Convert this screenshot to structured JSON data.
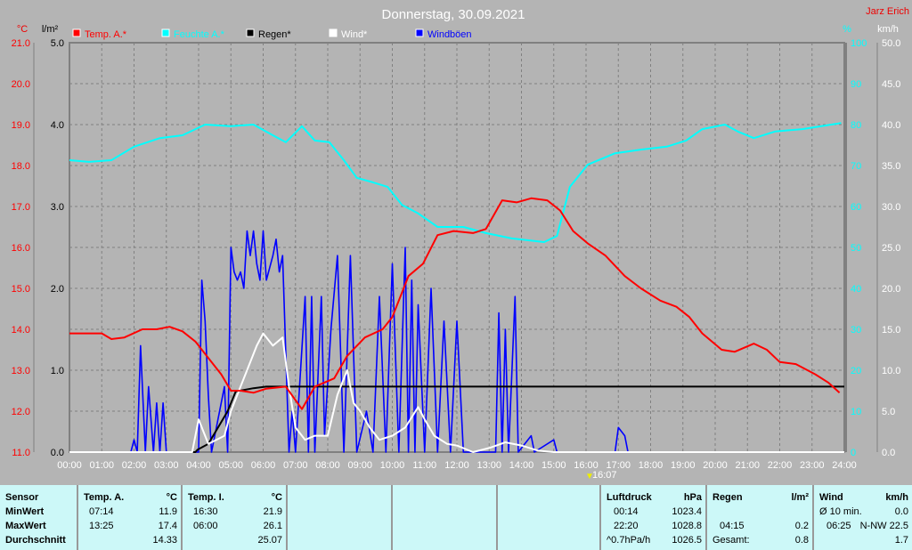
{
  "header": {
    "title": "Donnerstag, 30.09.2021",
    "author": "Jarz Erich"
  },
  "legend": [
    {
      "label": "Temp. A.*",
      "color": "#ff0000"
    },
    {
      "label": "Feuchte A.*",
      "color": "#00ffff"
    },
    {
      "label": "Regen*",
      "color": "#000000"
    },
    {
      "label": "Wind*",
      "color": "#ffffff"
    },
    {
      "label": "Windböen",
      "color": "#0000ff"
    }
  ],
  "marker": {
    "label": "16:07"
  },
  "chart_data": {
    "type": "line",
    "x_axis": {
      "range": [
        0,
        24
      ],
      "ticks": [
        "00:00",
        "01:00",
        "02:00",
        "03:00",
        "04:00",
        "05:00",
        "06:00",
        "07:00",
        "08:00",
        "09:00",
        "10:00",
        "11:00",
        "12:00",
        "13:00",
        "14:00",
        "15:00",
        "16:00",
        "17:00",
        "18:00",
        "19:00",
        "20:00",
        "21:00",
        "22:00",
        "23:00",
        "24:00"
      ]
    },
    "axes": {
      "temp": {
        "unit": "°C",
        "range": [
          11,
          21
        ],
        "ticks": [
          "21.0",
          "20.0",
          "19.0",
          "18.0",
          "17.0",
          "16.0",
          "15.0",
          "14.0",
          "13.0",
          "12.0",
          "11.0"
        ],
        "color": "#ff0000"
      },
      "rain": {
        "unit": "l/m²",
        "range": [
          0,
          5
        ],
        "ticks": [
          "5.0",
          "4.0",
          "3.0",
          "2.0",
          "1.0",
          "0.0"
        ],
        "color": "#000000"
      },
      "humidity": {
        "unit": "%",
        "range": [
          0,
          100
        ],
        "ticks": [
          "100",
          "90",
          "80",
          "70",
          "60",
          "50",
          "40",
          "30",
          "20",
          "10",
          "0"
        ],
        "color": "#00ffff"
      },
      "wind": {
        "unit": "km/h",
        "range": [
          0,
          50
        ],
        "ticks": [
          "50.0",
          "45.0",
          "40.0",
          "35.0",
          "30.0",
          "25.0",
          "20.0",
          "15.0",
          "10.0",
          "5.0",
          "0.0"
        ],
        "color": "#ffffff"
      }
    },
    "grid": true,
    "series": [
      {
        "name": "Temp. A.*",
        "axis": "temp",
        "color": "#ff0000",
        "points": [
          [
            0,
            13.9
          ],
          [
            1,
            13.9
          ],
          [
            1.3,
            13.76
          ],
          [
            1.7,
            13.8
          ],
          [
            2.26,
            14.0
          ],
          [
            2.7,
            14.0
          ],
          [
            3.1,
            14.06
          ],
          [
            3.5,
            13.95
          ],
          [
            3.9,
            13.7
          ],
          [
            4.3,
            13.3
          ],
          [
            4.7,
            12.9
          ],
          [
            5.0,
            12.5
          ],
          [
            5.3,
            12.5
          ],
          [
            5.7,
            12.45
          ],
          [
            6.1,
            12.55
          ],
          [
            6.7,
            12.6
          ],
          [
            7.2,
            12.05
          ],
          [
            7.6,
            12.6
          ],
          [
            8.2,
            12.8
          ],
          [
            8.6,
            13.35
          ],
          [
            9.15,
            13.8
          ],
          [
            9.7,
            14.0
          ],
          [
            10.0,
            14.3
          ],
          [
            10.3,
            14.9
          ],
          [
            10.5,
            15.3
          ],
          [
            10.95,
            15.6
          ],
          [
            11.4,
            16.3
          ],
          [
            11.9,
            16.4
          ],
          [
            12.5,
            16.35
          ],
          [
            12.9,
            16.45
          ],
          [
            13.15,
            16.8
          ],
          [
            13.4,
            17.15
          ],
          [
            13.85,
            17.1
          ],
          [
            14.3,
            17.2
          ],
          [
            14.8,
            17.15
          ],
          [
            15.2,
            16.9
          ],
          [
            15.6,
            16.4
          ],
          [
            16.05,
            16.1
          ],
          [
            16.6,
            15.8
          ],
          [
            17.2,
            15.3
          ],
          [
            17.7,
            15.0
          ],
          [
            18.3,
            14.7
          ],
          [
            18.8,
            14.55
          ],
          [
            19.2,
            14.3
          ],
          [
            19.6,
            13.9
          ],
          [
            20.2,
            13.5
          ],
          [
            20.6,
            13.45
          ],
          [
            21.2,
            13.65
          ],
          [
            21.6,
            13.5
          ],
          [
            22.0,
            13.2
          ],
          [
            22.5,
            13.15
          ],
          [
            23.1,
            12.9
          ],
          [
            23.5,
            12.7
          ],
          [
            23.85,
            12.45
          ]
        ]
      },
      {
        "name": "Feuchte A.*",
        "axis": "humidity",
        "color": "#00ffff",
        "points": [
          [
            0,
            71.3
          ],
          [
            0.6,
            70.9
          ],
          [
            1.3,
            71.3
          ],
          [
            2.0,
            74.6
          ],
          [
            2.8,
            76.7
          ],
          [
            3.5,
            77.4
          ],
          [
            4.2,
            80
          ],
          [
            5.0,
            79.6
          ],
          [
            5.7,
            80
          ],
          [
            6.3,
            77.4
          ],
          [
            6.7,
            75.7
          ],
          [
            7.2,
            79.6
          ],
          [
            7.6,
            76.1
          ],
          [
            8.05,
            75.7
          ],
          [
            8.5,
            71.3
          ],
          [
            8.9,
            67
          ],
          [
            9.4,
            65.9
          ],
          [
            9.85,
            64.8
          ],
          [
            10.3,
            60.4
          ],
          [
            10.8,
            58.3
          ],
          [
            11.4,
            55
          ],
          [
            12.2,
            55
          ],
          [
            12.9,
            53.5
          ],
          [
            13.7,
            52.2
          ],
          [
            14.7,
            51.3
          ],
          [
            15.1,
            52.8
          ],
          [
            15.5,
            64.8
          ],
          [
            16.05,
            70.2
          ],
          [
            16.9,
            73
          ],
          [
            17.7,
            73.9
          ],
          [
            18.5,
            74.6
          ],
          [
            19.1,
            76.1
          ],
          [
            19.6,
            78.9
          ],
          [
            20.3,
            80
          ],
          [
            20.7,
            78.3
          ],
          [
            21.2,
            76.7
          ],
          [
            21.85,
            78.3
          ],
          [
            22.7,
            78.9
          ],
          [
            23.9,
            80.4
          ]
        ]
      },
      {
        "name": "Regen*",
        "axis": "rain",
        "color": "#000000",
        "points": [
          [
            0,
            0
          ],
          [
            3.9,
            0
          ],
          [
            3.97,
            0.03
          ],
          [
            4.3,
            0.1
          ],
          [
            4.6,
            0.3
          ],
          [
            4.9,
            0.5
          ],
          [
            5.15,
            0.74
          ],
          [
            5.7,
            0.78
          ],
          [
            6.1,
            0.8
          ],
          [
            24,
            0.8
          ]
        ]
      },
      {
        "name": "Windböen",
        "axis": "wind",
        "color": "#0000ff",
        "points": [
          [
            0,
            0
          ],
          [
            1.9,
            0
          ],
          [
            2.0,
            1.5
          ],
          [
            2.1,
            0
          ],
          [
            2.2,
            13
          ],
          [
            2.35,
            0
          ],
          [
            2.45,
            8
          ],
          [
            2.6,
            0
          ],
          [
            2.7,
            6
          ],
          [
            2.8,
            0
          ],
          [
            2.9,
            6
          ],
          [
            3.0,
            0
          ],
          [
            4.0,
            0
          ],
          [
            4.1,
            21
          ],
          [
            4.2,
            16
          ],
          [
            4.3,
            7
          ],
          [
            4.4,
            0
          ],
          [
            4.8,
            8
          ],
          [
            4.9,
            0
          ],
          [
            5.0,
            25
          ],
          [
            5.1,
            22
          ],
          [
            5.2,
            21
          ],
          [
            5.3,
            22
          ],
          [
            5.4,
            20
          ],
          [
            5.5,
            27
          ],
          [
            5.6,
            24
          ],
          [
            5.7,
            27
          ],
          [
            5.8,
            23
          ],
          [
            5.9,
            21
          ],
          [
            6.0,
            27
          ],
          [
            6.1,
            21
          ],
          [
            6.3,
            24
          ],
          [
            6.4,
            26
          ],
          [
            6.5,
            22
          ],
          [
            6.6,
            24
          ],
          [
            6.8,
            0
          ],
          [
            6.9,
            5
          ],
          [
            7.0,
            0
          ],
          [
            7.3,
            19
          ],
          [
            7.4,
            0
          ],
          [
            7.5,
            19
          ],
          [
            7.6,
            0
          ],
          [
            7.8,
            19
          ],
          [
            7.9,
            2
          ],
          [
            8.1,
            15
          ],
          [
            8.3,
            24
          ],
          [
            8.5,
            0
          ],
          [
            8.7,
            24
          ],
          [
            8.9,
            0
          ],
          [
            9.2,
            5
          ],
          [
            9.4,
            0
          ],
          [
            9.6,
            19
          ],
          [
            9.8,
            0
          ],
          [
            10.0,
            23
          ],
          [
            10.2,
            0
          ],
          [
            10.4,
            25
          ],
          [
            10.5,
            0
          ],
          [
            10.6,
            21
          ],
          [
            10.7,
            0
          ],
          [
            10.8,
            18
          ],
          [
            11.0,
            0
          ],
          [
            11.2,
            20
          ],
          [
            11.4,
            0
          ],
          [
            11.6,
            16
          ],
          [
            11.8,
            0
          ],
          [
            12.0,
            16
          ],
          [
            12.2,
            0
          ],
          [
            13.2,
            0
          ],
          [
            13.3,
            17
          ],
          [
            13.4,
            0
          ],
          [
            13.5,
            15
          ],
          [
            13.6,
            0
          ],
          [
            13.8,
            19
          ],
          [
            13.9,
            0
          ],
          [
            14.3,
            2
          ],
          [
            14.4,
            0
          ],
          [
            15.0,
            1.5
          ],
          [
            15.1,
            0
          ],
          [
            16.9,
            0
          ],
          [
            17.0,
            3
          ],
          [
            17.2,
            2
          ],
          [
            17.3,
            0
          ]
        ]
      },
      {
        "name": "Wind*",
        "axis": "wind",
        "color": "#ffffff",
        "points": [
          [
            0,
            0
          ],
          [
            3.8,
            0
          ],
          [
            4.0,
            4
          ],
          [
            4.3,
            1
          ],
          [
            4.8,
            2
          ],
          [
            5.0,
            5
          ],
          [
            5.3,
            8
          ],
          [
            5.5,
            10
          ],
          [
            5.8,
            13
          ],
          [
            6.0,
            14.5
          ],
          [
            6.3,
            13
          ],
          [
            6.6,
            14
          ],
          [
            6.8,
            8
          ],
          [
            7.0,
            3
          ],
          [
            7.3,
            1.5
          ],
          [
            7.6,
            2
          ],
          [
            8.0,
            2
          ],
          [
            8.3,
            7
          ],
          [
            8.6,
            10
          ],
          [
            8.8,
            6
          ],
          [
            9.0,
            5
          ],
          [
            9.3,
            3
          ],
          [
            9.6,
            1.5
          ],
          [
            10.0,
            2
          ],
          [
            10.4,
            3
          ],
          [
            10.8,
            5.5
          ],
          [
            11.0,
            4
          ],
          [
            11.3,
            2
          ],
          [
            11.7,
            1
          ],
          [
            12.0,
            0.8
          ],
          [
            12.5,
            0
          ],
          [
            13.0,
            0.5
          ],
          [
            13.5,
            1.2
          ],
          [
            14.0,
            0.8
          ],
          [
            14.5,
            0.2
          ],
          [
            15,
            0
          ],
          [
            24,
            0
          ]
        ]
      }
    ]
  },
  "table": {
    "sensor": {
      "header": "Sensor",
      "rows": [
        "MinWert",
        "MaxWert",
        "Durchschnitt"
      ]
    },
    "temp_a": {
      "header": "Temp. A.",
      "unit": "°C",
      "min_time": "07:14",
      "min": "11.9",
      "max_time": "13:25",
      "max": "17.4",
      "avg": "14.33"
    },
    "temp_i": {
      "header": "Temp. I.",
      "unit": "°C",
      "min_time": "16:30",
      "min": "21.9",
      "max_time": "06:00",
      "max": "26.1",
      "avg": "25.07"
    },
    "pressure": {
      "header": "Luftdruck",
      "unit": "hPa",
      "min_time": "00:14",
      "min": "1023.4",
      "max_time": "22:20",
      "max": "1028.8",
      "trend": "^0.7hPa/h",
      "avg": "1026.5"
    },
    "rain": {
      "header": "Regen",
      "unit": "l/m²",
      "max_time": "04:15",
      "max": "0.2",
      "total_label": "Gesamt:",
      "total": "0.8"
    },
    "wind": {
      "header": "Wind",
      "unit": "km/h",
      "avg_label": "Ø 10 min.",
      "avg": "0.0",
      "max_time": "06:25",
      "max": "N-NW 22.5",
      "mean": "1.7"
    }
  }
}
